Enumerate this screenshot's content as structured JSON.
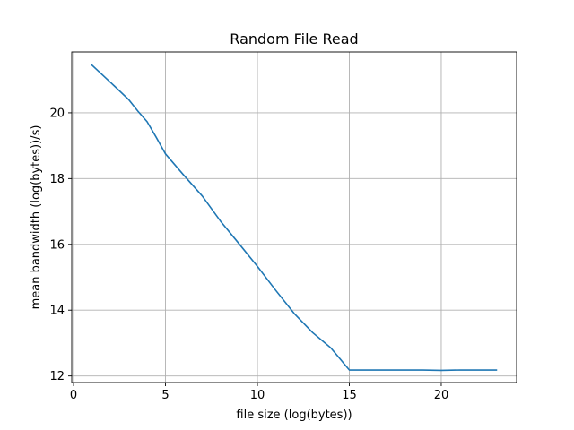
{
  "chart_data": {
    "type": "line",
    "title": "Random File Read",
    "xlabel": "file size (log(bytes))",
    "ylabel": "mean bandwidth (log(bytes))/s)",
    "xlim": [
      -0.1,
      24.1
    ],
    "ylim": [
      11.8,
      21.85
    ],
    "xticks": [
      0,
      5,
      10,
      15,
      20
    ],
    "yticks": [
      12,
      14,
      16,
      18,
      20
    ],
    "grid": true,
    "line_color": "#1f77b4",
    "series": [
      {
        "x": [
          1,
          2,
          3,
          3.5,
          4,
          4.5,
          5,
          6,
          7,
          8,
          9,
          10,
          11,
          12,
          13,
          14,
          15,
          16,
          17,
          18,
          19,
          20,
          21,
          22,
          23
        ],
        "y": [
          21.45,
          20.93,
          20.4,
          20.05,
          19.73,
          19.25,
          18.75,
          18.1,
          17.47,
          16.7,
          16.02,
          15.33,
          14.6,
          13.9,
          13.32,
          12.85,
          12.18,
          12.18,
          12.18,
          12.18,
          12.18,
          12.17,
          12.18,
          12.18,
          12.18
        ]
      }
    ]
  }
}
